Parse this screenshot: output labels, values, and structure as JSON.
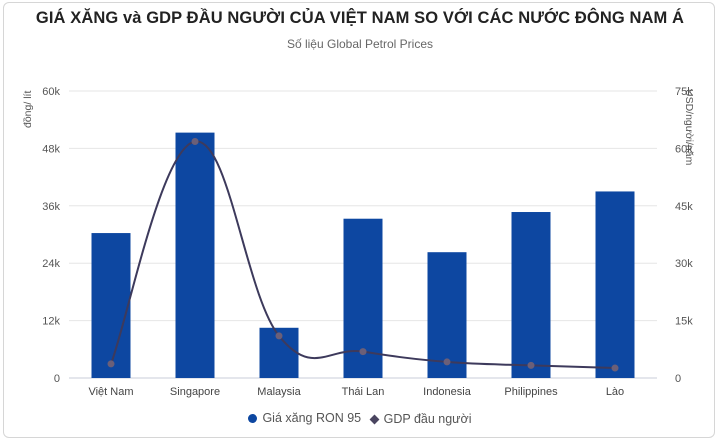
{
  "chart_data": {
    "type": "bar+line",
    "title": "GIÁ XĂNG và GDP ĐẦU NGƯỜI CỦA VIỆT NAM SO VỚI CÁC NƯỚC ĐÔNG NAM Á",
    "subtitle": "Số liệu Global Petrol Prices",
    "categories": [
      "Việt Nam",
      "Singapore",
      "Malaysia",
      "Thái Lan",
      "Indonesia",
      "Philippines",
      "Lào"
    ],
    "series": [
      {
        "name": "Giá xăng RON 95",
        "type": "bar",
        "axis": "left",
        "color": "#0d47a1",
        "values": [
          30300,
          51300,
          10500,
          33300,
          26300,
          34700,
          39000
        ]
      },
      {
        "name": "GDP đầu người",
        "type": "line",
        "axis": "right",
        "color": "#3d3a5c",
        "values": [
          3700,
          61800,
          11000,
          6900,
          4200,
          3300,
          2600
        ]
      }
    ],
    "ylabel_left": "đồng/ lít",
    "ylabel_right": "USD/người/năm",
    "ylim_left": [
      0,
      60000
    ],
    "ylim_right": [
      0,
      75000
    ],
    "yticks_left": [
      "0",
      "12k",
      "24k",
      "36k",
      "48k",
      "60k"
    ],
    "yticks_right": [
      "0",
      "15k",
      "30k",
      "45k",
      "60k",
      "75k"
    ],
    "grid": true,
    "legend_position": "bottom"
  },
  "header": {
    "title": "GIÁ XĂNG và GDP ĐẦU NGƯỜI CỦA VIỆT NAM SO VỚI CÁC NƯỚC ĐÔNG NAM Á",
    "subtitle": "Số liệu Global Petrol Prices"
  },
  "legend": [
    {
      "label": "Giá xăng RON 95",
      "color": "#0d47a1"
    },
    {
      "label": "GDP đầu người",
      "color": "#4a4560"
    }
  ]
}
